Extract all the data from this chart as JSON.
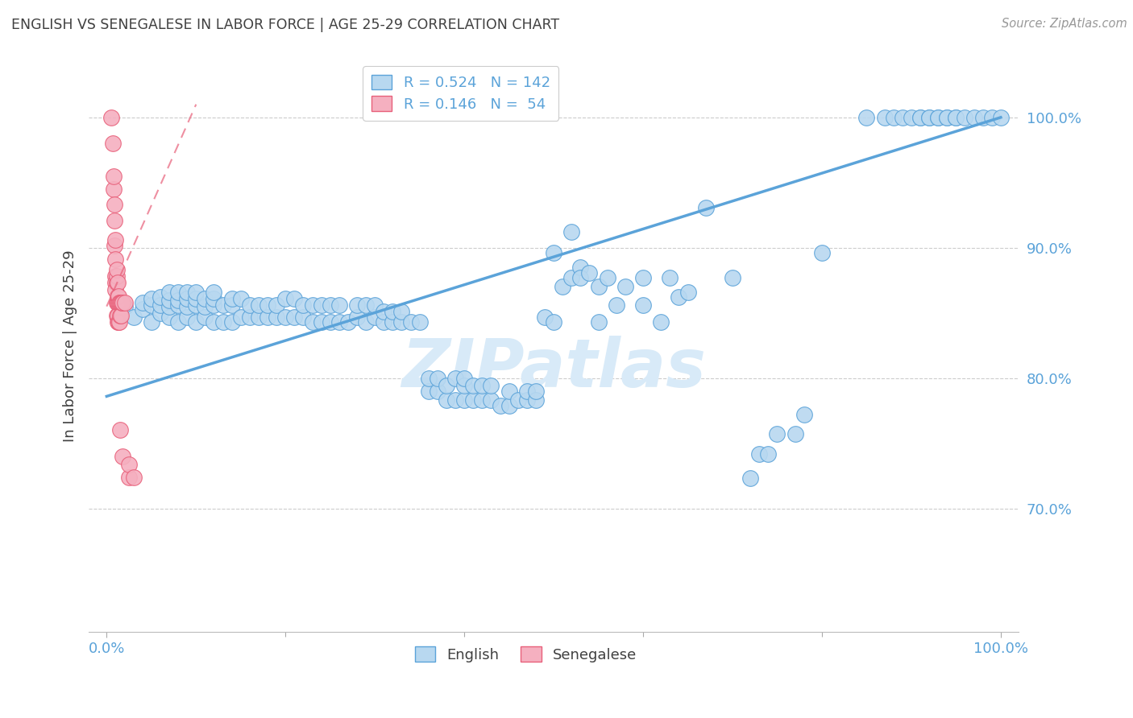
{
  "title": "ENGLISH VS SENEGALESE IN LABOR FORCE | AGE 25-29 CORRELATION CHART",
  "source": "Source: ZipAtlas.com",
  "ylabel": "In Labor Force | Age 25-29",
  "y_tick_labels": [
    "100.0%",
    "90.0%",
    "80.0%",
    "70.0%"
  ],
  "y_tick_values": [
    1.0,
    0.9,
    0.8,
    0.7
  ],
  "xlim": [
    -0.02,
    1.02
  ],
  "ylim": [
    0.605,
    1.045
  ],
  "english_scatter": [
    [
      0.02,
      0.855
    ],
    [
      0.03,
      0.847
    ],
    [
      0.04,
      0.853
    ],
    [
      0.04,
      0.858
    ],
    [
      0.05,
      0.843
    ],
    [
      0.05,
      0.856
    ],
    [
      0.05,
      0.861
    ],
    [
      0.06,
      0.85
    ],
    [
      0.06,
      0.856
    ],
    [
      0.06,
      0.862
    ],
    [
      0.07,
      0.847
    ],
    [
      0.07,
      0.855
    ],
    [
      0.07,
      0.86
    ],
    [
      0.07,
      0.866
    ],
    [
      0.08,
      0.843
    ],
    [
      0.08,
      0.856
    ],
    [
      0.08,
      0.86
    ],
    [
      0.08,
      0.866
    ],
    [
      0.09,
      0.847
    ],
    [
      0.09,
      0.855
    ],
    [
      0.09,
      0.861
    ],
    [
      0.09,
      0.866
    ],
    [
      0.1,
      0.843
    ],
    [
      0.1,
      0.856
    ],
    [
      0.1,
      0.861
    ],
    [
      0.1,
      0.866
    ],
    [
      0.11,
      0.847
    ],
    [
      0.11,
      0.855
    ],
    [
      0.11,
      0.861
    ],
    [
      0.12,
      0.843
    ],
    [
      0.12,
      0.856
    ],
    [
      0.12,
      0.861
    ],
    [
      0.12,
      0.866
    ],
    [
      0.13,
      0.843
    ],
    [
      0.13,
      0.856
    ],
    [
      0.14,
      0.843
    ],
    [
      0.14,
      0.856
    ],
    [
      0.14,
      0.861
    ],
    [
      0.15,
      0.847
    ],
    [
      0.15,
      0.861
    ],
    [
      0.16,
      0.847
    ],
    [
      0.16,
      0.856
    ],
    [
      0.17,
      0.847
    ],
    [
      0.17,
      0.856
    ],
    [
      0.18,
      0.847
    ],
    [
      0.18,
      0.856
    ],
    [
      0.19,
      0.847
    ],
    [
      0.19,
      0.856
    ],
    [
      0.2,
      0.847
    ],
    [
      0.2,
      0.861
    ],
    [
      0.21,
      0.847
    ],
    [
      0.21,
      0.861
    ],
    [
      0.22,
      0.847
    ],
    [
      0.22,
      0.856
    ],
    [
      0.23,
      0.843
    ],
    [
      0.23,
      0.856
    ],
    [
      0.24,
      0.843
    ],
    [
      0.24,
      0.856
    ],
    [
      0.25,
      0.843
    ],
    [
      0.25,
      0.856
    ],
    [
      0.26,
      0.843
    ],
    [
      0.26,
      0.856
    ],
    [
      0.27,
      0.843
    ],
    [
      0.28,
      0.847
    ],
    [
      0.28,
      0.856
    ],
    [
      0.29,
      0.843
    ],
    [
      0.29,
      0.856
    ],
    [
      0.3,
      0.847
    ],
    [
      0.3,
      0.856
    ],
    [
      0.31,
      0.843
    ],
    [
      0.31,
      0.851
    ],
    [
      0.32,
      0.843
    ],
    [
      0.32,
      0.851
    ],
    [
      0.33,
      0.843
    ],
    [
      0.33,
      0.851
    ],
    [
      0.34,
      0.843
    ],
    [
      0.35,
      0.843
    ],
    [
      0.36,
      0.79
    ],
    [
      0.36,
      0.8
    ],
    [
      0.37,
      0.79
    ],
    [
      0.37,
      0.8
    ],
    [
      0.38,
      0.783
    ],
    [
      0.38,
      0.794
    ],
    [
      0.39,
      0.783
    ],
    [
      0.39,
      0.8
    ],
    [
      0.4,
      0.783
    ],
    [
      0.4,
      0.794
    ],
    [
      0.4,
      0.8
    ],
    [
      0.41,
      0.783
    ],
    [
      0.41,
      0.794
    ],
    [
      0.42,
      0.783
    ],
    [
      0.42,
      0.794
    ],
    [
      0.43,
      0.783
    ],
    [
      0.43,
      0.794
    ],
    [
      0.44,
      0.779
    ],
    [
      0.45,
      0.779
    ],
    [
      0.45,
      0.79
    ],
    [
      0.46,
      0.783
    ],
    [
      0.47,
      0.783
    ],
    [
      0.47,
      0.79
    ],
    [
      0.48,
      0.783
    ],
    [
      0.48,
      0.79
    ],
    [
      0.49,
      0.847
    ],
    [
      0.5,
      0.896
    ],
    [
      0.5,
      0.843
    ],
    [
      0.51,
      0.87
    ],
    [
      0.52,
      0.877
    ],
    [
      0.52,
      0.912
    ],
    [
      0.53,
      0.885
    ],
    [
      0.53,
      0.877
    ],
    [
      0.54,
      0.881
    ],
    [
      0.55,
      0.87
    ],
    [
      0.55,
      0.843
    ],
    [
      0.56,
      0.877
    ],
    [
      0.57,
      0.856
    ],
    [
      0.58,
      0.87
    ],
    [
      0.6,
      0.877
    ],
    [
      0.6,
      0.856
    ],
    [
      0.62,
      0.843
    ],
    [
      0.63,
      0.877
    ],
    [
      0.64,
      0.862
    ],
    [
      0.65,
      0.866
    ],
    [
      0.67,
      0.931
    ],
    [
      0.7,
      0.877
    ],
    [
      0.72,
      0.723
    ],
    [
      0.73,
      0.742
    ],
    [
      0.74,
      0.742
    ],
    [
      0.75,
      0.757
    ],
    [
      0.77,
      0.757
    ],
    [
      0.78,
      0.772
    ],
    [
      0.8,
      0.896
    ],
    [
      0.85,
      1.0
    ],
    [
      0.87,
      1.0
    ],
    [
      0.88,
      1.0
    ],
    [
      0.89,
      1.0
    ],
    [
      0.9,
      1.0
    ],
    [
      0.91,
      1.0
    ],
    [
      0.91,
      1.0
    ],
    [
      0.92,
      1.0
    ],
    [
      0.92,
      1.0
    ],
    [
      0.93,
      1.0
    ],
    [
      0.93,
      1.0
    ],
    [
      0.94,
      1.0
    ],
    [
      0.94,
      1.0
    ],
    [
      0.95,
      1.0
    ],
    [
      0.95,
      1.0
    ],
    [
      0.96,
      1.0
    ],
    [
      0.97,
      1.0
    ],
    [
      0.98,
      1.0
    ],
    [
      0.99,
      1.0
    ],
    [
      1.0,
      1.0
    ]
  ],
  "senegalese_scatter": [
    [
      0.005,
      1.0
    ],
    [
      0.007,
      0.98
    ],
    [
      0.008,
      0.945
    ],
    [
      0.008,
      0.955
    ],
    [
      0.009,
      0.902
    ],
    [
      0.009,
      0.921
    ],
    [
      0.009,
      0.933
    ],
    [
      0.01,
      0.878
    ],
    [
      0.01,
      0.891
    ],
    [
      0.01,
      0.906
    ],
    [
      0.01,
      0.873
    ],
    [
      0.01,
      0.868
    ],
    [
      0.011,
      0.873
    ],
    [
      0.011,
      0.878
    ],
    [
      0.011,
      0.883
    ],
    [
      0.011,
      0.858
    ],
    [
      0.011,
      0.848
    ],
    [
      0.012,
      0.858
    ],
    [
      0.012,
      0.863
    ],
    [
      0.012,
      0.873
    ],
    [
      0.012,
      0.843
    ],
    [
      0.012,
      0.848
    ],
    [
      0.013,
      0.858
    ],
    [
      0.013,
      0.863
    ],
    [
      0.013,
      0.843
    ],
    [
      0.014,
      0.858
    ],
    [
      0.014,
      0.843
    ],
    [
      0.015,
      0.858
    ],
    [
      0.015,
      0.848
    ],
    [
      0.016,
      0.858
    ],
    [
      0.016,
      0.848
    ],
    [
      0.017,
      0.858
    ],
    [
      0.018,
      0.858
    ],
    [
      0.02,
      0.858
    ],
    [
      0.015,
      0.76
    ],
    [
      0.018,
      0.74
    ],
    [
      0.025,
      0.724
    ],
    [
      0.025,
      0.734
    ],
    [
      0.03,
      0.724
    ]
  ],
  "english_line_x": [
    0.0,
    1.0
  ],
  "english_line_y": [
    0.786,
    1.0
  ],
  "senegalese_line_x": [
    0.0,
    0.1
  ],
  "senegalese_line_y": [
    0.855,
    1.01
  ],
  "english_color": "#5ba3d9",
  "english_scatter_color": "#b8d8f0",
  "senegalese_color": "#e8607a",
  "senegalese_scatter_color": "#f5b0c0",
  "watermark_text": "ZIPatlas",
  "watermark_color": "#d8eaf8",
  "background_color": "#ffffff",
  "grid_color": "#cccccc",
  "title_color": "#404040",
  "tick_label_color": "#5ba3d9",
  "legend_r_n_label_1": "R = 0.524   N = 142",
  "legend_r_n_label_2": "R = 0.146   N =  54",
  "legend_label_english": "English",
  "legend_label_senegalese": "Senegalese"
}
